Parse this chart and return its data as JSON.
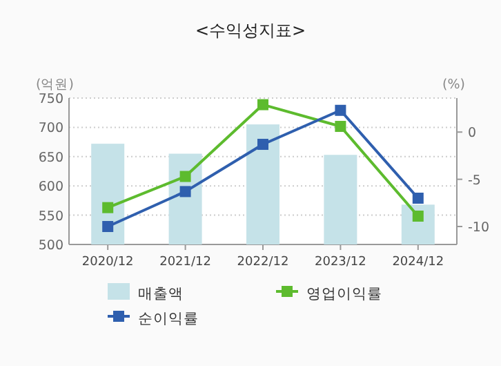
{
  "chart_data": {
    "type": "bar",
    "title": "<수익성지표>",
    "ylabel": "(억원)",
    "y2label": "(%)",
    "categories": [
      "2020/12",
      "2021/12",
      "2022/12",
      "2023/12",
      "2024/12"
    ],
    "series": [
      {
        "name": "매출액",
        "color": "#c5e2e8",
        "values": [
          672,
          655,
          705,
          653,
          568
        ]
      },
      {
        "name": "영업이익률",
        "type": "line",
        "axis": "y2",
        "color": "#5dbb2e",
        "values": [
          -8.0,
          -4.7,
          2.9,
          0.6,
          -8.9
        ]
      },
      {
        "name": "순이익률",
        "type": "line",
        "axis": "y2",
        "color": "#2f5fae",
        "values": [
          -10.0,
          -6.3,
          -1.3,
          2.3,
          -7.0
        ]
      }
    ],
    "ylim": [
      500,
      750
    ],
    "yticks": [
      500,
      550,
      600,
      650,
      700,
      750
    ],
    "y2lim": [
      -11.9,
      3.6
    ],
    "y2ticks": [
      -10,
      -5,
      0
    ],
    "grid": "y",
    "legend": "bottom",
    "marker": "square"
  }
}
